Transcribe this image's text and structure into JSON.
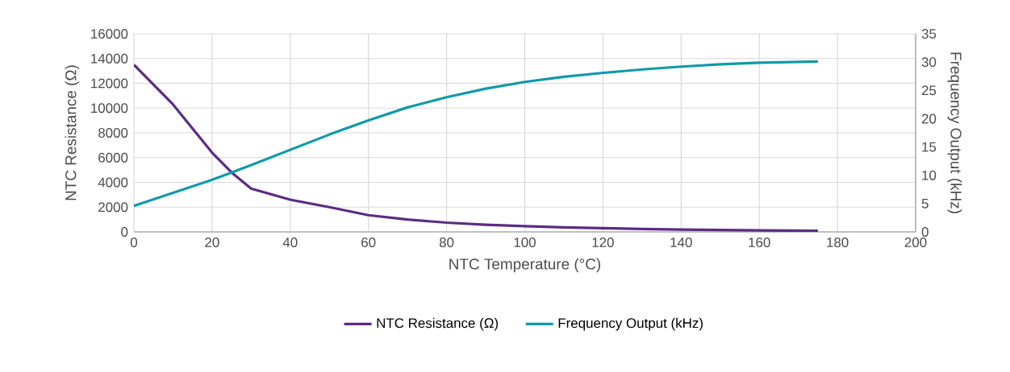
{
  "chart_data": {
    "type": "line",
    "xlabel": "NTC Temperature (°C)",
    "ylabel": "NTC Resistance (Ω)",
    "y2label": "Frequency Output (kHz)",
    "series": [
      {
        "name": "NTC Resistance (Ω)",
        "color": "#5b2c83",
        "x": [
          0,
          10,
          20,
          25,
          30,
          40,
          50,
          60,
          70,
          80,
          90,
          100,
          110,
          120,
          130,
          140,
          150,
          160,
          175
        ],
        "values": [
          13500,
          10300,
          6400,
          4800,
          3500,
          2600,
          2000,
          1350,
          1000,
          750,
          580,
          460,
          370,
          300,
          240,
          190,
          150,
          120,
          90
        ]
      },
      {
        "name": "Frequency Output (kHz)",
        "color": "#0f9aa8",
        "axis": "y2",
        "x": [
          0,
          10,
          20,
          25,
          30,
          40,
          50,
          60,
          70,
          80,
          90,
          100,
          110,
          120,
          130,
          140,
          150,
          160,
          175
        ],
        "values": [
          4.6,
          6.9,
          9.2,
          10.5,
          11.8,
          14.5,
          17.2,
          19.7,
          22.0,
          23.8,
          25.3,
          26.5,
          27.4,
          28.1,
          28.7,
          29.2,
          29.6,
          29.9,
          30.1
        ]
      }
    ],
    "xlim": [
      0,
      200
    ],
    "xticks": [
      0,
      20,
      40,
      60,
      80,
      100,
      120,
      140,
      160,
      180,
      200
    ],
    "ylim": [
      0,
      16000
    ],
    "yticks": [
      0,
      2000,
      4000,
      6000,
      8000,
      10000,
      12000,
      14000,
      16000
    ],
    "y2lim": [
      0,
      35
    ],
    "y2ticks": [
      0,
      5,
      10,
      15,
      20,
      25,
      30,
      35
    ],
    "grid": true,
    "legend": "bottom",
    "marker": "none",
    "line_style": "solid"
  }
}
